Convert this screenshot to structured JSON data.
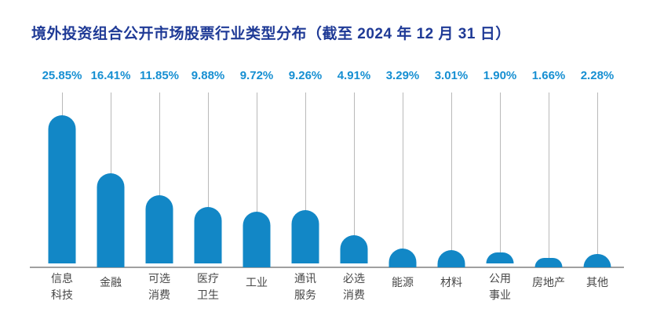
{
  "title": "境外投资组合公开市场股票行业类型分布（截至 2024 年 12 月 31 日）",
  "chart_data": {
    "type": "bar",
    "title": "境外投资组合公开市场股票行业类型分布（截至 2024 年 12 月 31 日）",
    "categories": [
      "信息科技",
      "金融",
      "可选消费",
      "医疗卫生",
      "工业",
      "通讯服务",
      "必选消费",
      "能源",
      "材料",
      "公用事业",
      "房地产",
      "其他"
    ],
    "category_lines": [
      [
        "信息",
        "科技"
      ],
      [
        "金融"
      ],
      [
        "可选",
        "消费"
      ],
      [
        "医疗",
        "卫生"
      ],
      [
        "工业"
      ],
      [
        "通讯",
        "服务"
      ],
      [
        "必选",
        "消费"
      ],
      [
        "能源"
      ],
      [
        "材料"
      ],
      [
        "公用",
        "事业"
      ],
      [
        "房地产"
      ],
      [
        "其他"
      ]
    ],
    "values": [
      25.85,
      16.41,
      11.85,
      9.88,
      9.72,
      9.26,
      4.91,
      3.29,
      3.01,
      1.9,
      1.66,
      2.28
    ],
    "value_labels": [
      "25.85%",
      "16.41%",
      "11.85%",
      "9.88%",
      "9.72%",
      "9.26%",
      "4.91%",
      "3.29%",
      "3.01%",
      "1.90%",
      "1.66%",
      "2.28%"
    ],
    "unit": "%",
    "xlabel": "",
    "ylabel": "",
    "ylim": [
      0,
      26
    ],
    "grid": false,
    "legend_position": "none",
    "colors": {
      "bar": "#1287c6",
      "value_label": "#168fd2",
      "title": "#1f3a96",
      "baseline": "#a0a0a0",
      "stem": "#b9b9b9",
      "category_label": "#474747",
      "background": "#ffffff"
    }
  }
}
